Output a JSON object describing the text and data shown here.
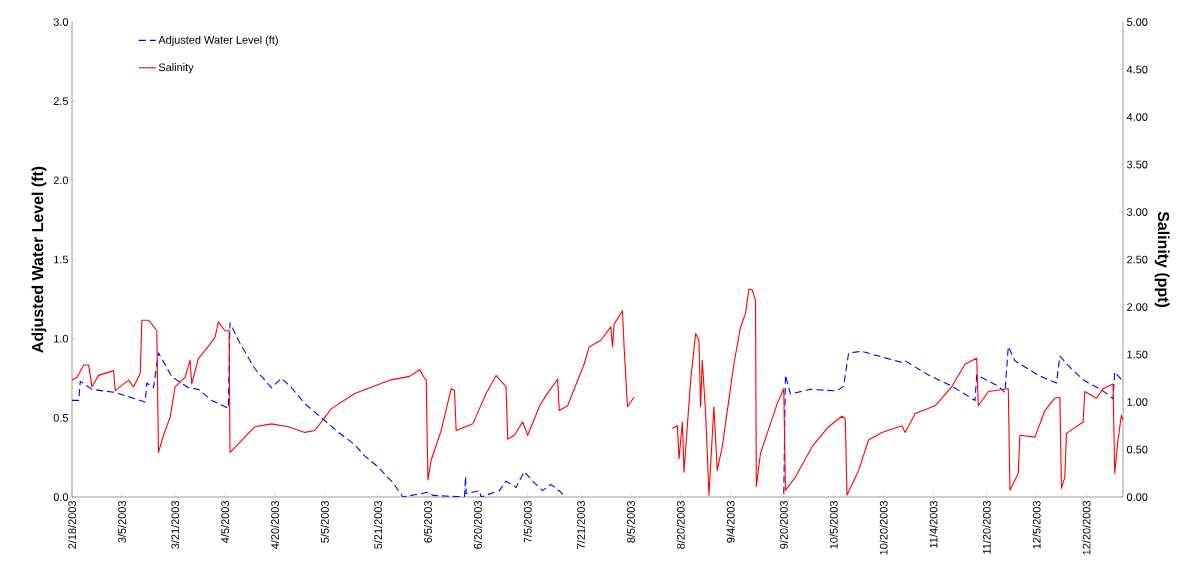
{
  "chart_data": {
    "type": "line",
    "xlabel": null,
    "ylabel": "Adjusted Water Level (ft)",
    "y2label": "Salinity (ppt)",
    "xlim": [
      "2003-02-18",
      "2003-12-31"
    ],
    "xticks": [
      {
        "value": "2003-02-18",
        "label": "2/18/2003"
      },
      {
        "value": "2003-03-05",
        "label": "3/5/2003"
      },
      {
        "value": "2003-03-21",
        "label": "3/21/2003"
      },
      {
        "value": "2003-04-05",
        "label": "4/5/2003"
      },
      {
        "value": "2003-04-20",
        "label": "4/20/2003"
      },
      {
        "value": "2003-05-05",
        "label": "5/5/2003"
      },
      {
        "value": "2003-05-21",
        "label": "5/21/2003"
      },
      {
        "value": "2003-06-05",
        "label": "6/5/2003"
      },
      {
        "value": "2003-06-20",
        "label": "6/20/2003"
      },
      {
        "value": "2003-07-05",
        "label": "7/5/2003"
      },
      {
        "value": "2003-07-21",
        "label": "7/21/2003"
      },
      {
        "value": "2003-08-05",
        "label": "8/5/2003"
      },
      {
        "value": "2003-08-20",
        "label": "8/20/2003"
      },
      {
        "value": "2003-09-04",
        "label": "9/4/2003"
      },
      {
        "value": "2003-09-20",
        "label": "9/20/2003"
      },
      {
        "value": "2003-10-05",
        "label": "10/5/2003"
      },
      {
        "value": "2003-10-20",
        "label": "10/20/2003"
      },
      {
        "value": "2003-11-04",
        "label": "11/4/2003"
      },
      {
        "value": "2003-11-20",
        "label": "11/20/2003"
      },
      {
        "value": "2003-12-05",
        "label": "12/5/2003"
      },
      {
        "value": "2003-12-20",
        "label": "12/20/2003"
      }
    ],
    "ylim": [
      0,
      3
    ],
    "yticks": [
      {
        "value": 0,
        "label": "0.0"
      },
      {
        "value": 0.5,
        "label": "0.5"
      },
      {
        "value": 1,
        "label": "1.0"
      },
      {
        "value": 1.5,
        "label": "1.5"
      },
      {
        "value": 2,
        "label": "2.0"
      },
      {
        "value": 2.5,
        "label": "2.5"
      },
      {
        "value": 3,
        "label": "3.0"
      }
    ],
    "y2lim": [
      0,
      5
    ],
    "y2ticks": [
      {
        "value": 0,
        "label": "0.00"
      },
      {
        "value": 0.5,
        "label": "0.50"
      },
      {
        "value": 1,
        "label": "1.00"
      },
      {
        "value": 1.5,
        "label": "1.50"
      },
      {
        "value": 2,
        "label": "2.00"
      },
      {
        "value": 2.5,
        "label": "2.50"
      },
      {
        "value": 3,
        "label": "3.00"
      },
      {
        "value": 3.5,
        "label": "3.50"
      },
      {
        "value": 4,
        "label": "4.00"
      },
      {
        "value": 4.5,
        "label": "4.50"
      },
      {
        "value": 5,
        "label": "5.00"
      }
    ],
    "grid": false,
    "legend": "top left",
    "marker": "none",
    "series": [
      {
        "name": "Adjusted Water Level (ft)",
        "color": "#0000ff",
        "line_style": "dashed",
        "x": [
          "2003-02-18",
          "2003-02-20",
          "2003-02-20T12:00",
          "2003-02-24",
          "2003-03-03",
          "2003-03-12",
          "2003-03-12T12:00",
          "2003-03-14T12:00",
          "2003-03-16",
          "2003-03-20",
          "2003-03-25",
          "2003-03-28",
          "2003-04-01",
          "2003-04-06",
          "2003-04-06T12:00",
          "2003-04-09",
          "2003-04-14",
          "2003-04-19",
          "2003-04-22",
          "2003-04-25",
          "2003-04-29",
          "2003-05-04",
          "2003-05-09",
          "2003-05-14",
          "2003-05-17",
          "2003-05-21",
          "2003-05-25T12:00",
          "2003-05-28T12:00",
          "2003-06-05",
          "2003-06-06T12:00",
          "2003-06-16",
          "2003-06-16T08:00",
          "2003-06-16T12:00",
          "2003-06-20T12:00",
          "2003-06-21",
          "2003-06-26T12:00",
          "2003-06-28T12:00",
          "2003-07-01T12:00",
          "2003-07-04",
          "2003-07-06T12:00",
          "2003-07-09T12:00",
          "2003-07-12",
          "2003-07-15",
          "2003-07-16",
          "2003-08-14",
          "2003-08-20",
          "2003-09-20",
          "2003-09-20T12:00",
          "2003-09-22",
          "2003-09-28",
          "2003-10-06",
          "2003-10-08",
          "2003-10-09T12:00",
          "2003-10-13T12:00",
          "2003-10-18T12:00",
          "2003-10-25T12:00",
          "2003-10-26T12:00",
          "2003-11-02T12:00",
          "2003-11-09T12:00",
          "2003-11-16T12:00",
          "2003-11-17",
          "2003-11-23T12:00",
          "2003-11-25T12:00",
          "2003-11-26T12:00",
          "2003-11-28T12:00",
          "2003-12-05T12:00",
          "2003-12-08T12:00",
          "2003-12-11",
          "2003-12-12",
          "2003-12-15",
          "2003-12-19",
          "2003-12-25",
          "2003-12-28",
          "2003-12-28T12:00",
          "2003-12-31"
        ],
        "values": [
          0.61,
          0.61,
          0.73,
          0.68,
          0.66,
          0.6,
          0.72,
          0.69,
          0.91,
          0.76,
          0.69,
          0.68,
          0.61,
          0.56,
          1.1,
          0.99,
          0.81,
          0.69,
          0.75,
          0.69,
          0.59,
          0.5,
          0.41,
          0.33,
          0.26,
          0.19,
          0.09,
          0,
          0.03,
          0.01,
          0,
          0.13,
          0.02,
          0.04,
          0,
          0.04,
          0.1,
          0.06,
          0.16,
          0.1,
          0.04,
          0.08,
          0.03,
          0,
          null,
          null,
          0.02,
          0.77,
          0.65,
          0.68,
          0.67,
          0.7,
          0.91,
          0.92,
          0.89,
          0.85,
          0.86,
          0.77,
          0.7,
          0.61,
          0.77,
          0.7,
          0.66,
          0.95,
          0.86,
          0.77,
          0.74,
          0.72,
          0.89,
          0.82,
          0.74,
          0.67,
          0.62,
          0.79,
          0.73
        ]
      },
      {
        "name": "Salinity",
        "color": "#ff0000",
        "line_style": "solid",
        "axis": "y2",
        "x": [
          "2003-02-18",
          "2003-02-19T12:00",
          "2003-02-21T12:00",
          "2003-02-23",
          "2003-02-24",
          "2003-02-26",
          "2003-03-02T12:00",
          "2003-03-03",
          "2003-03-07",
          "2003-03-08T12:00",
          "2003-03-10T12:00",
          "2003-03-11",
          "2003-03-13",
          "2003-03-14",
          "2003-03-15T12:00",
          "2003-03-16",
          "2003-03-17T12:00",
          "2003-03-19T12:00",
          "2003-03-21",
          "2003-03-24",
          "2003-03-25T12:00",
          "2003-03-26",
          "2003-03-28",
          "2003-03-30",
          "2003-04-02",
          "2003-04-03",
          "2003-04-05",
          "2003-04-06T06:00",
          "2003-04-06T12:00",
          "2003-04-09",
          "2003-04-14",
          "2003-04-19",
          "2003-04-24",
          "2003-04-29",
          "2003-05-02",
          "2003-05-07",
          "2003-05-14",
          "2003-05-24T12:00",
          "2003-05-30T12:00",
          "2003-06-02T12:00",
          "2003-06-04",
          "2003-06-04T12:00",
          "2003-06-05",
          "2003-06-06",
          "2003-06-09",
          "2003-06-12",
          "2003-06-13",
          "2003-06-13T12:00",
          "2003-06-18T12:00",
          "2003-06-22T12:00",
          "2003-06-25T12:00",
          "2003-06-28T12:00",
          "2003-06-29",
          "2003-07-01",
          "2003-07-03T12:00",
          "2003-07-05",
          "2003-07-08T12:00",
          "2003-07-10T12:00",
          "2003-07-14",
          "2003-07-14T12:00",
          "2003-07-17",
          "2003-07-22",
          "2003-07-23T12:00",
          "2003-07-27",
          "2003-07-30",
          "2003-07-30T12:00",
          "2003-07-31",
          "2003-08-02T12:00",
          "2003-08-03",
          "2003-08-04",
          "2003-08-06",
          "2003-08-12",
          "2003-08-17T12:00",
          "2003-08-19",
          "2003-08-19T12:00",
          "2003-08-20T12:00",
          "2003-08-21",
          "2003-08-23",
          "2003-08-24T12:00",
          "2003-08-25T12:00",
          "2003-08-26",
          "2003-08-26T12:00",
          "2003-08-27T12:00",
          "2003-08-28T12:00",
          "2003-08-30",
          "2003-08-31",
          "2003-09-01T12:00",
          "2003-09-05",
          "2003-09-07",
          "2003-09-08T12:00",
          "2003-09-09T12:00",
          "2003-09-10T12:00",
          "2003-09-11T12:00",
          "2003-09-11T18:00",
          "2003-09-13",
          "2003-09-15",
          "2003-09-18",
          "2003-09-20",
          "2003-09-20T12:00",
          "2003-09-23T12:00",
          "2003-09-28T12:00",
          "2003-10-03T12:00",
          "2003-10-07T12:00",
          "2003-10-08T12:00",
          "2003-10-09",
          "2003-10-12T12:00",
          "2003-10-15T12:00",
          "2003-10-19T12:00",
          "2003-10-25T12:00",
          "2003-10-26T12:00",
          "2003-10-29T12:00",
          "2003-11-04T12:00",
          "2003-11-09T12:00",
          "2003-11-13T12:00",
          "2003-11-17",
          "2003-11-17T12:00",
          "2003-11-20T12:00",
          "2003-11-26T12:00",
          "2003-11-27",
          "2003-11-29T12:00",
          "2003-11-30",
          "2003-12-04T12:00",
          "2003-12-07T12:00",
          "2003-12-10T12:00",
          "2003-12-12",
          "2003-12-12T12:00",
          "2003-12-13T12:00",
          "2003-12-14",
          "2003-12-19",
          "2003-12-19T12:00",
          "2003-12-23",
          "2003-12-25",
          "2003-12-28",
          "2003-12-28T12:00",
          "2003-12-29T12:00",
          "2003-12-30T12:00",
          "2003-12-31"
        ],
        "values": [
          1.23,
          1.26,
          1.39,
          1.39,
          1.16,
          1.28,
          1.33,
          1.12,
          1.23,
          1.16,
          1.3,
          1.86,
          1.86,
          1.82,
          1.75,
          0.47,
          0.65,
          0.84,
          1.16,
          1.26,
          1.44,
          1.19,
          1.46,
          1.54,
          1.68,
          1.84,
          1.75,
          1.75,
          0.47,
          0.56,
          0.74,
          0.77,
          0.74,
          0.68,
          0.7,
          0.93,
          1.09,
          1.23,
          1.27,
          1.34,
          1.25,
          1.23,
          0.18,
          0.39,
          0.7,
          1.14,
          1.12,
          0.7,
          0.77,
          1.09,
          1.28,
          1.16,
          0.61,
          0.65,
          0.79,
          0.65,
          0.95,
          1.07,
          1.24,
          0.91,
          0.96,
          1.4,
          1.58,
          1.65,
          1.79,
          1.58,
          1.82,
          1.96,
          1.58,
          0.95,
          1.05,
          null,
          0.72,
          0.75,
          0.4,
          0.79,
          0.26,
          1.23,
          1.72,
          1.65,
          0.95,
          1.44,
          0.88,
          0.02,
          0.95,
          0.28,
          0.53,
          1.4,
          1.79,
          1.93,
          2.19,
          2.18,
          2.07,
          0.11,
          0.46,
          0.67,
          0.98,
          1.14,
          0.07,
          0.21,
          0.53,
          0.74,
          0.85,
          0.82,
          0.02,
          0.28,
          0.6,
          0.68,
          0.75,
          0.68,
          0.88,
          0.96,
          1.16,
          1.4,
          1.46,
          0.96,
          1.11,
          1.14,
          0.07,
          0.25,
          0.65,
          0.63,
          0.91,
          1.04,
          1.05,
          0.09,
          0.21,
          0.67,
          0.79,
          1.11,
          1.04,
          1.14,
          1.19,
          0.25,
          0.6,
          0.86,
          0.81
        ]
      }
    ]
  }
}
